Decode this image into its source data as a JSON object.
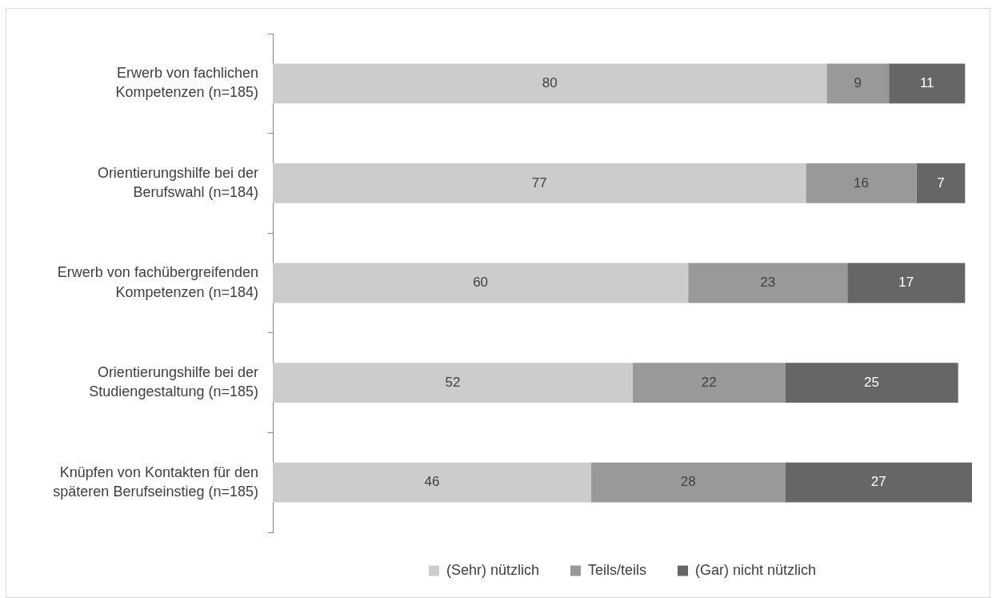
{
  "chart_data": {
    "type": "bar",
    "orientation": "horizontal",
    "stacked": true,
    "data_labels": true,
    "legend": "bottom",
    "tick_labels": "y",
    "categories": [
      "Erwerb von fachlichen Kompetenzen (n=185)",
      "Orientierungshilfe bei der Berufswahl (n=184)",
      "Erwerb von fachübergreifenden Kompetenzen (n=184)",
      "Orientierungshilfe bei der Studiengestaltung (n=185)",
      "Knüpfen von Kontakten für den späteren Berufseinstieg (n=185)"
    ],
    "series": [
      {
        "name": "(Sehr) nützlich",
        "color": "#cccccc",
        "values": [
          80,
          77,
          60,
          52,
          46
        ]
      },
      {
        "name": "Teils/teils",
        "color": "#999999",
        "values": [
          9,
          16,
          23,
          22,
          28
        ]
      },
      {
        "name": "(Gar) nicht nützlich",
        "color": "#666666",
        "values": [
          11,
          7,
          17,
          25,
          27
        ]
      }
    ]
  }
}
